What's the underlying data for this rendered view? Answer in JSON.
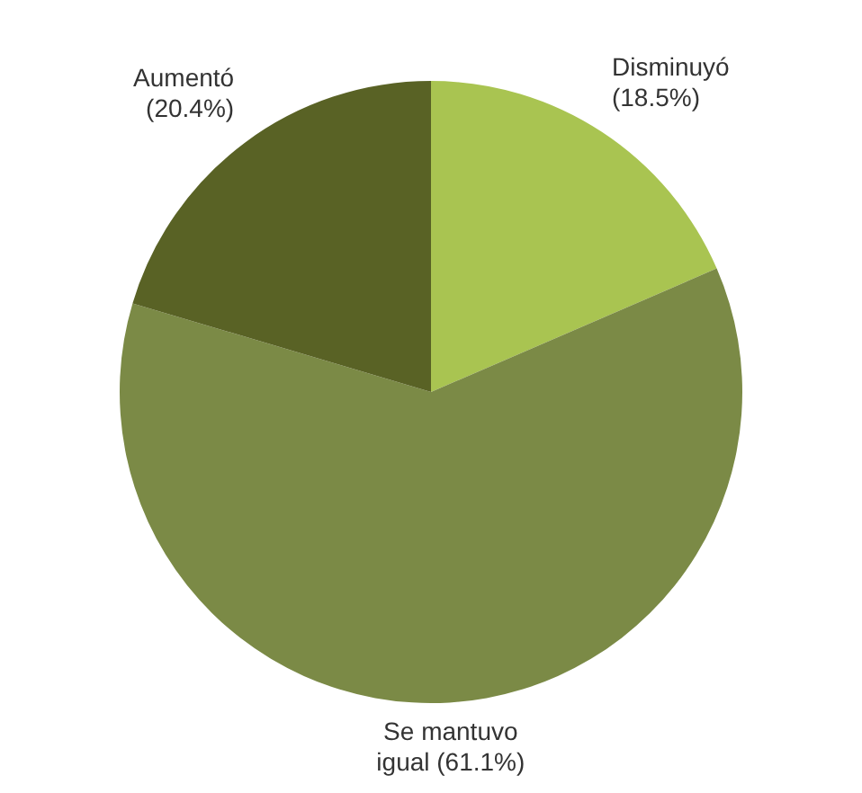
{
  "chart_data": {
    "type": "pie",
    "categories": [
      "Disminuyó",
      "Se mantuvo igual",
      "Aumentó"
    ],
    "values": [
      18.5,
      61.1,
      20.4
    ],
    "colors": [
      "#a9c451",
      "#7b8a46",
      "#596225"
    ],
    "value_labels": [
      "(18.5%)",
      "(61.1%)",
      "(20.4%)"
    ],
    "legend": false
  }
}
